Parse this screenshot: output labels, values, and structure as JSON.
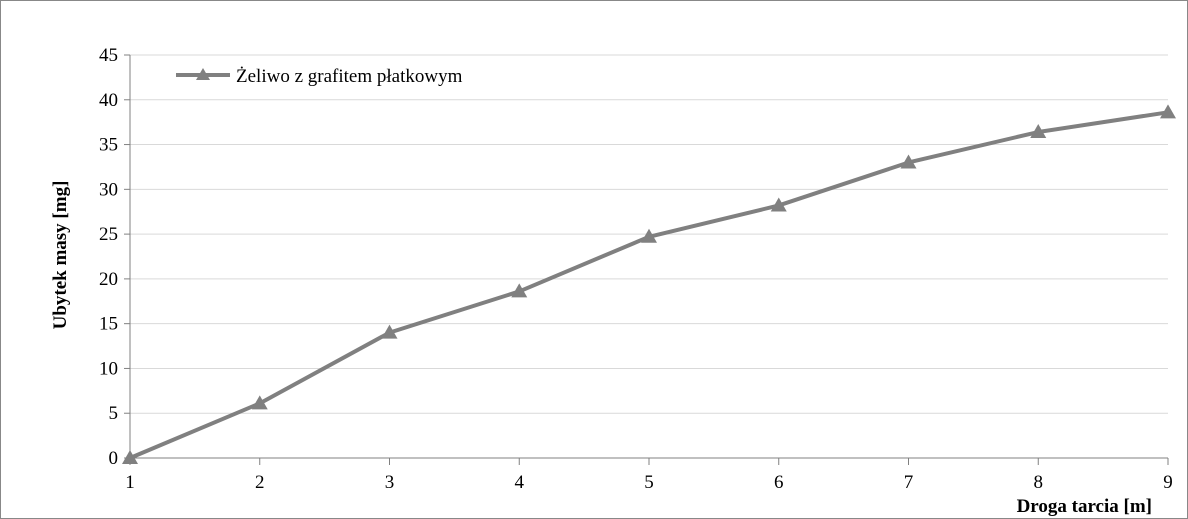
{
  "chart_data": {
    "type": "line",
    "x": [
      1,
      2,
      3,
      4,
      5,
      6,
      7,
      8,
      9
    ],
    "series": [
      {
        "name": "Żeliwo z grafitem płatkowym",
        "values": [
          0,
          6.1,
          14.0,
          18.6,
          24.7,
          28.2,
          33.0,
          36.4,
          38.6
        ],
        "color": "#808080",
        "marker": "triangle"
      }
    ],
    "xlabel": "Droga tarcia [m]",
    "ylabel": "Ubytek masy [mg]",
    "xlim": [
      1,
      9
    ],
    "ylim": [
      0,
      45
    ],
    "xticks": [
      "1",
      "2",
      "3",
      "4",
      "5",
      "6",
      "7",
      "8",
      "9"
    ],
    "yticks": [
      "0",
      "5",
      "10",
      "15",
      "20",
      "25",
      "30",
      "35",
      "40",
      "45"
    ],
    "grid": true,
    "legend": "top-left"
  }
}
